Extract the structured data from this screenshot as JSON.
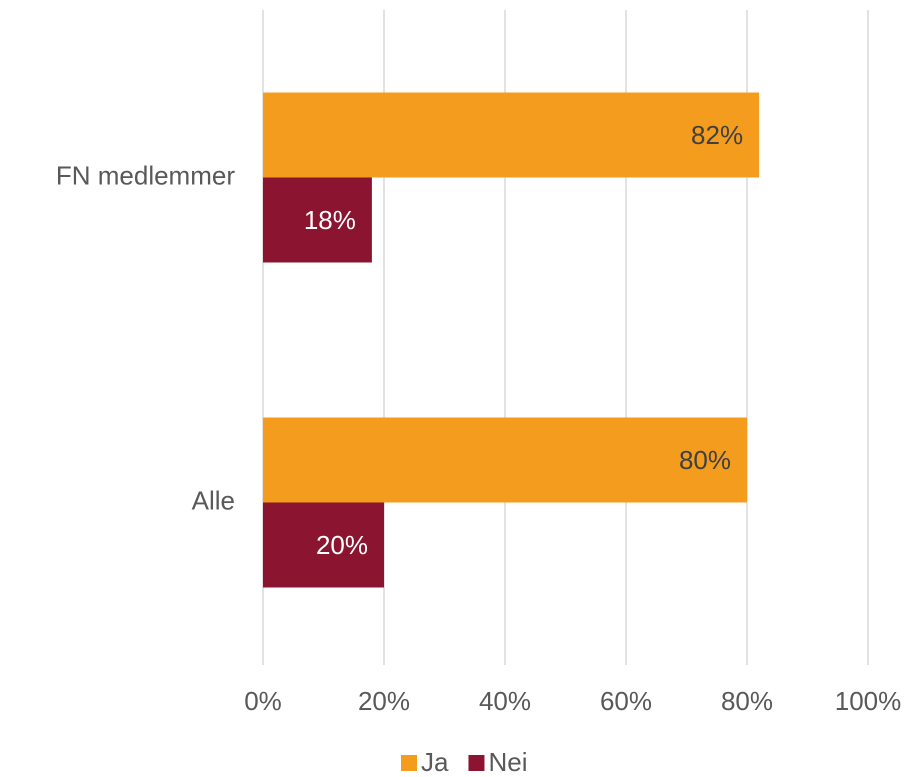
{
  "chart_data": {
    "type": "hbar",
    "categories": [
      "FN medlemmer",
      "Alle"
    ],
    "series": [
      {
        "name": "Ja",
        "color": "#f39c1d",
        "values": [
          82,
          80
        ],
        "value_labels": [
          "82%",
          "80%"
        ]
      },
      {
        "name": "Nei",
        "color": "#8b1531",
        "values": [
          18,
          20
        ],
        "value_labels": [
          "18%",
          "20%"
        ]
      }
    ],
    "xlim": [
      0,
      100
    ],
    "xticks": [
      {
        "value": 0,
        "label": "0%"
      },
      {
        "value": 20,
        "label": "20%"
      },
      {
        "value": 40,
        "label": "40%"
      },
      {
        "value": 60,
        "label": "60%"
      },
      {
        "value": 80,
        "label": "80%"
      },
      {
        "value": 100,
        "label": "100%"
      }
    ],
    "grid": true,
    "legend": "bottom"
  }
}
